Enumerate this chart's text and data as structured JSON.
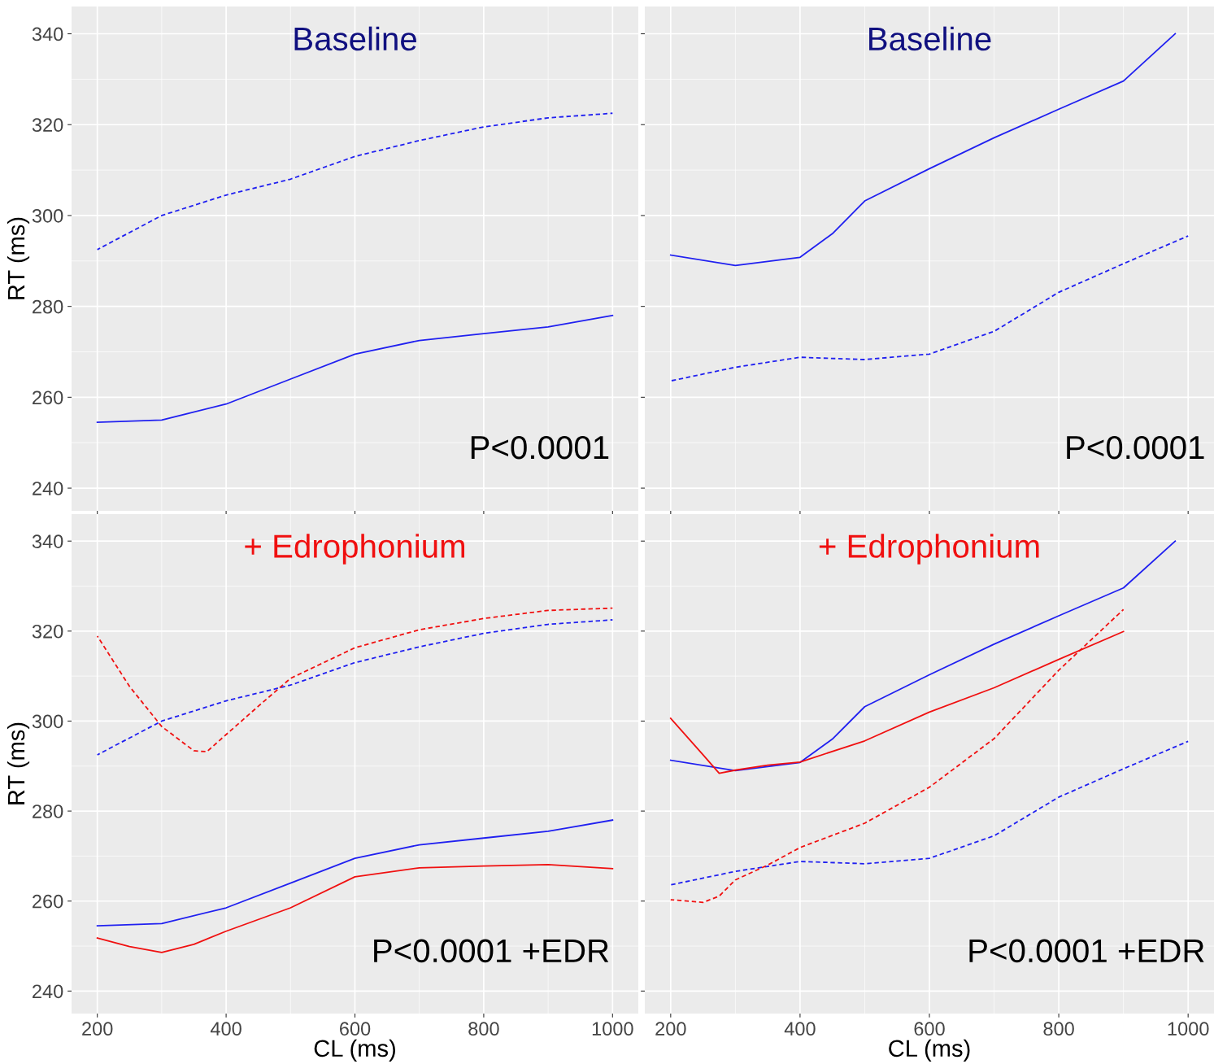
{
  "chart_data": [
    {
      "type": "line",
      "title": "Baseline",
      "ylabel": "RT (ms)",
      "annotations": [
        "P<0.0001"
      ],
      "xlim": [
        160,
        1040
      ],
      "ylim": [
        235,
        346
      ],
      "xticks": [
        200,
        400,
        600,
        800,
        1000
      ],
      "yticks": [
        240,
        260,
        280,
        300,
        320,
        340
      ],
      "tick_labels": "y",
      "grid": true,
      "series": [
        {
          "color": "#2020f0",
          "line_style": "dashed",
          "x": [
            200,
            300,
            400,
            500,
            600,
            700,
            800,
            900,
            1000
          ],
          "values": [
            292.5,
            300,
            304.5,
            308,
            313,
            316.5,
            319.5,
            321.5,
            322.5
          ]
        },
        {
          "color": "#2020f0",
          "line_style": "solid",
          "x": [
            200,
            300,
            400,
            500,
            600,
            700,
            800,
            900,
            1000
          ],
          "values": [
            254.5,
            255,
            258.5,
            264,
            269.5,
            272.5,
            274,
            275.5,
            278
          ]
        }
      ]
    },
    {
      "type": "line",
      "title": "Baseline",
      "annotations": [
        "P<0.0001"
      ],
      "xlim": [
        160,
        1040
      ],
      "ylim": [
        235,
        346
      ],
      "xticks": [
        200,
        400,
        600,
        800,
        1000
      ],
      "yticks": [
        240,
        260,
        280,
        300,
        320,
        340
      ],
      "tick_labels": false,
      "grid": true,
      "series": [
        {
          "color": "#2020f0",
          "line_style": "solid",
          "x": [
            200,
            300,
            400,
            450,
            500,
            600,
            700,
            800,
            900,
            980
          ],
          "values": [
            291.3,
            289,
            290.8,
            296,
            303.2,
            310.3,
            317.1,
            323.4,
            329.6,
            340
          ]
        },
        {
          "color": "#2020f0",
          "line_style": "dashed",
          "x": [
            200,
            300,
            400,
            500,
            600,
            700,
            800,
            900,
            1000
          ],
          "values": [
            263.6,
            266.6,
            268.8,
            268.3,
            269.5,
            274.5,
            283.1,
            289.4,
            295.5
          ]
        }
      ]
    },
    {
      "type": "line",
      "title": "+ Edrophonium",
      "xlabel": "CL (ms)",
      "ylabel": "RT (ms)",
      "annotations": [
        "P<0.0001 +EDR"
      ],
      "xlim": [
        160,
        1040
      ],
      "ylim": [
        235,
        346
      ],
      "xticks": [
        200,
        400,
        600,
        800,
        1000
      ],
      "yticks": [
        240,
        260,
        280,
        300,
        320,
        340
      ],
      "grid": true,
      "series": [
        {
          "color": "#2020f0",
          "line_style": "dashed",
          "x": [
            200,
            300,
            400,
            500,
            600,
            700,
            800,
            900,
            1000
          ],
          "values": [
            292.5,
            300,
            304.5,
            308,
            313,
            316.5,
            319.5,
            321.5,
            322.5
          ]
        },
        {
          "color": "#2020f0",
          "line_style": "solid",
          "x": [
            200,
            300,
            400,
            500,
            600,
            700,
            800,
            900,
            1000
          ],
          "values": [
            254.5,
            255,
            258.5,
            264,
            269.5,
            272.5,
            274,
            275.5,
            278
          ]
        },
        {
          "color": "#f01010",
          "line_style": "dashed",
          "x": [
            200,
            250,
            300,
            350,
            370,
            400,
            450,
            500,
            600,
            700,
            800,
            900,
            1000
          ],
          "values": [
            318.9,
            307.7,
            298.8,
            293.4,
            293.2,
            297,
            303.3,
            309.5,
            316.3,
            320.3,
            322.8,
            324.6,
            325.1
          ]
        },
        {
          "color": "#f01010",
          "line_style": "solid",
          "x": [
            200,
            250,
            300,
            350,
            400,
            500,
            600,
            700,
            800,
            900,
            1000
          ],
          "values": [
            251.8,
            249.9,
            248.6,
            250.4,
            253.3,
            258.5,
            265.4,
            267.4,
            267.8,
            268.1,
            267.2
          ]
        }
      ]
    },
    {
      "type": "line",
      "title": "+ Edrophonium",
      "xlabel": "CL (ms)",
      "annotations": [
        "P<0.0001 +EDR"
      ],
      "xlim": [
        160,
        1040
      ],
      "ylim": [
        235,
        346
      ],
      "xticks": [
        200,
        400,
        600,
        800,
        1000
      ],
      "yticks": [
        240,
        260,
        280,
        300,
        320,
        340
      ],
      "tick_labels": "x",
      "grid": true,
      "series": [
        {
          "color": "#2020f0",
          "line_style": "solid",
          "x": [
            200,
            300,
            400,
            450,
            500,
            600,
            700,
            800,
            900,
            980
          ],
          "values": [
            291.3,
            289,
            290.8,
            296,
            303.2,
            310.3,
            317.1,
            323.4,
            329.6,
            340
          ]
        },
        {
          "color": "#2020f0",
          "line_style": "dashed",
          "x": [
            200,
            300,
            400,
            500,
            600,
            700,
            800,
            900,
            1000
          ],
          "values": [
            263.6,
            266.6,
            268.8,
            268.3,
            269.5,
            274.5,
            283.1,
            289.4,
            295.5
          ]
        },
        {
          "color": "#f01010",
          "line_style": "solid",
          "x": [
            200,
            250,
            275,
            300,
            350,
            400,
            500,
            600,
            700,
            800,
            900
          ],
          "values": [
            300.6,
            292.5,
            288.4,
            289.1,
            290.2,
            290.9,
            295.6,
            302,
            307.4,
            313.7,
            319.9
          ]
        },
        {
          "color": "#f01010",
          "line_style": "dashed",
          "x": [
            200,
            250,
            275,
            300,
            350,
            400,
            500,
            600,
            700,
            800,
            900
          ],
          "values": [
            260.3,
            259.7,
            261.1,
            264.7,
            268,
            271.9,
            277.3,
            285.3,
            296.1,
            311.3,
            324.8
          ]
        }
      ]
    }
  ]
}
